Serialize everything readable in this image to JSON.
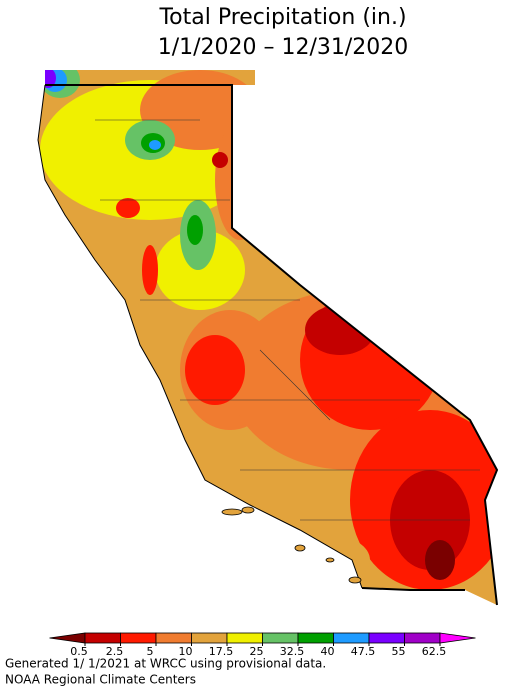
{
  "title": [
    "Total Precipitation (in.)",
    "1/1/2020 – 12/31/2020"
  ],
  "legend": {
    "ticks": [
      0.5,
      2.5,
      5,
      10,
      17.5,
      25,
      32.5,
      40,
      47.5,
      55,
      62.5
    ],
    "colors": [
      "#7a0000",
      "#c40000",
      "#ff1a00",
      "#f07c30",
      "#e2a33c",
      "#f0f000",
      "#66c266",
      "#00a000",
      "#1e9bff",
      "#7a00ff",
      "#a000c8",
      "#ff00ff"
    ]
  },
  "footer": [
    "Generated 1/ 1/2021 at WRCC using provisional data.",
    "NOAA Regional Climate Centers"
  ]
}
